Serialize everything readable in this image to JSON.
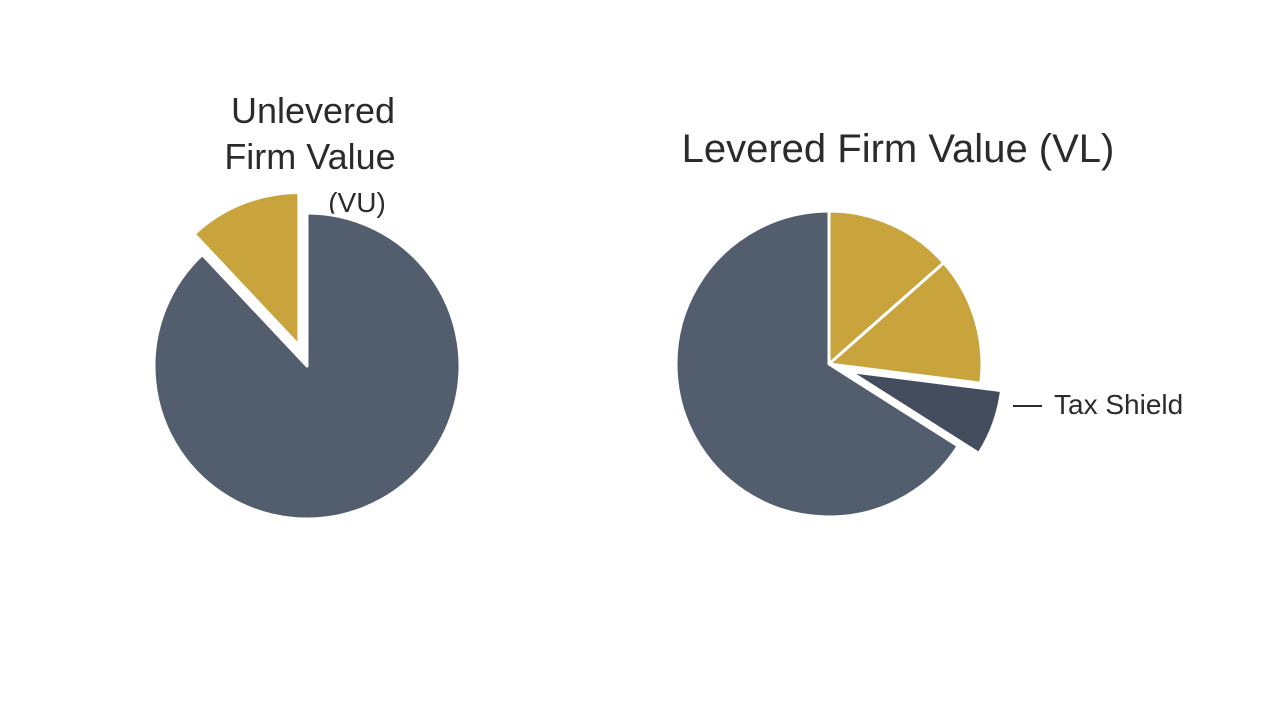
{
  "chart_data": [
    {
      "type": "pie",
      "title_lines": [
        "Unlevered",
        "Firm Value"
      ],
      "subtitle": "(VU)",
      "start_angle_deg": -90,
      "slices": [
        {
          "value": 88,
          "color": "#525d6e",
          "exploded": false
        },
        {
          "value": 12,
          "color": "#c9a33c",
          "exploded": true
        }
      ]
    },
    {
      "type": "pie",
      "title": "Levered Firm Value (VL)",
      "start_angle_deg": -90,
      "slices": [
        {
          "value": 13.5,
          "color": "#c9a33c",
          "exploded": false
        },
        {
          "value": 13.5,
          "color": "#c9a33c",
          "exploded": false
        },
        {
          "value": 7,
          "color": "#434d5e",
          "exploded": true,
          "label": "Tax Shield"
        },
        {
          "value": 66,
          "color": "#525d6e",
          "exploded": false
        }
      ]
    }
  ],
  "colors": {
    "background": "#ffffff",
    "slate": "#525d6e",
    "gold": "#c9a33c",
    "dark_slate": "#434d5e"
  }
}
